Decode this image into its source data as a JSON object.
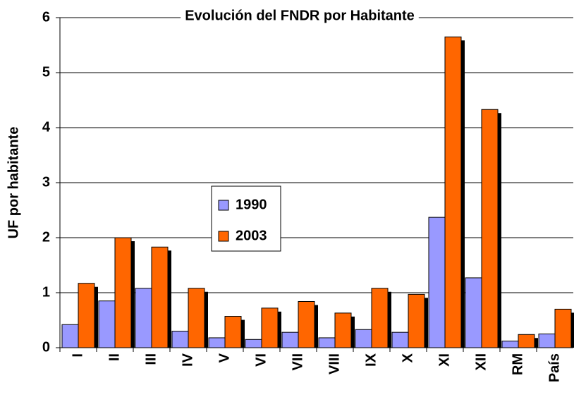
{
  "chart_data": {
    "type": "bar",
    "title": "Evolución del FNDR por Habitante",
    "ylabel": "UF por habitante",
    "categories": [
      "I",
      "II",
      "III",
      "IV",
      "V",
      "VI",
      "VII",
      "VIII",
      "IX",
      "X",
      "XI",
      "XII",
      "RM",
      "País"
    ],
    "series": [
      {
        "name": "1990",
        "color": "#9999ff",
        "values": [
          0.42,
          0.85,
          1.08,
          0.3,
          0.18,
          0.15,
          0.28,
          0.18,
          0.33,
          0.28,
          2.37,
          1.27,
          0.12,
          0.25
        ]
      },
      {
        "name": "2003",
        "color": "#ff6600",
        "values": [
          1.17,
          2.0,
          1.83,
          1.08,
          0.57,
          0.72,
          0.84,
          0.63,
          1.08,
          0.97,
          5.65,
          4.33,
          0.24,
          0.7
        ]
      }
    ],
    "ylim": [
      0,
      6
    ],
    "yticks": [
      0,
      1,
      2,
      3,
      4,
      5,
      6
    ],
    "grid": true
  }
}
